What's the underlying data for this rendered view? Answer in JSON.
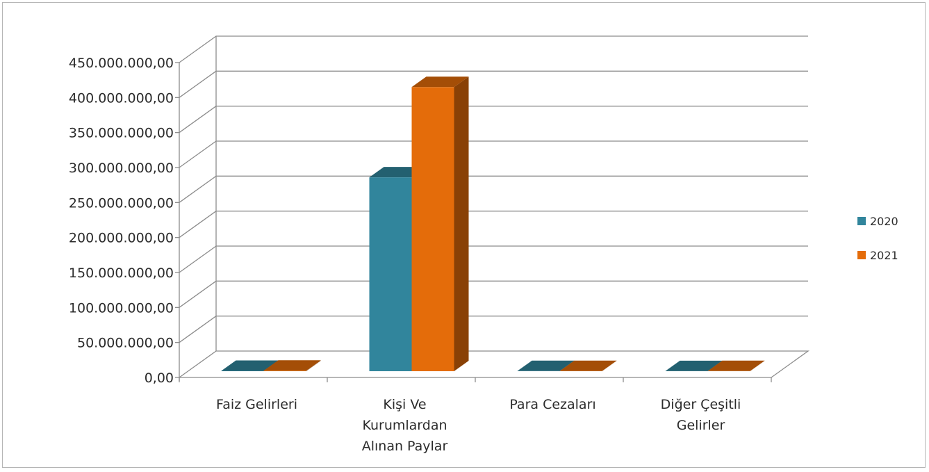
{
  "chart_data": {
    "type": "bar",
    "title": "",
    "xlabel": "",
    "ylabel": "",
    "categories": [
      [
        "Faiz Gelirleri"
      ],
      [
        "Kişi Ve",
        "Kurumlardan",
        "Alınan Paylar"
      ],
      [
        "Para Cezaları"
      ],
      [
        "Diğer Çeşitli",
        "Gelirler"
      ]
    ],
    "series": [
      {
        "name": "2020",
        "color": "#31859c",
        "values": [
          500000,
          277000000,
          200000,
          150000
        ]
      },
      {
        "name": "2021",
        "color": "#e46c0a",
        "values": [
          800000,
          406000000,
          300000,
          200000
        ]
      }
    ],
    "ylim": [
      0,
      450000000
    ],
    "y_ticks": [
      {
        "value": 0,
        "label": "0,00"
      },
      {
        "value": 50000000,
        "label": "50.000.000,00"
      },
      {
        "value": 100000000,
        "label": "100.000.000,00"
      },
      {
        "value": 150000000,
        "label": "150.000.000,00"
      },
      {
        "value": 200000000,
        "label": "200.000.000,00"
      },
      {
        "value": 250000000,
        "label": "250.000.000,00"
      },
      {
        "value": 300000000,
        "label": "300.000.000,00"
      },
      {
        "value": 350000000,
        "label": "350.000.000,00"
      },
      {
        "value": 400000000,
        "label": "400.000.000,00"
      },
      {
        "value": 450000000,
        "label": "450.000.000,00"
      }
    ],
    "grid": true,
    "three_d": true,
    "legend_position": "right"
  }
}
